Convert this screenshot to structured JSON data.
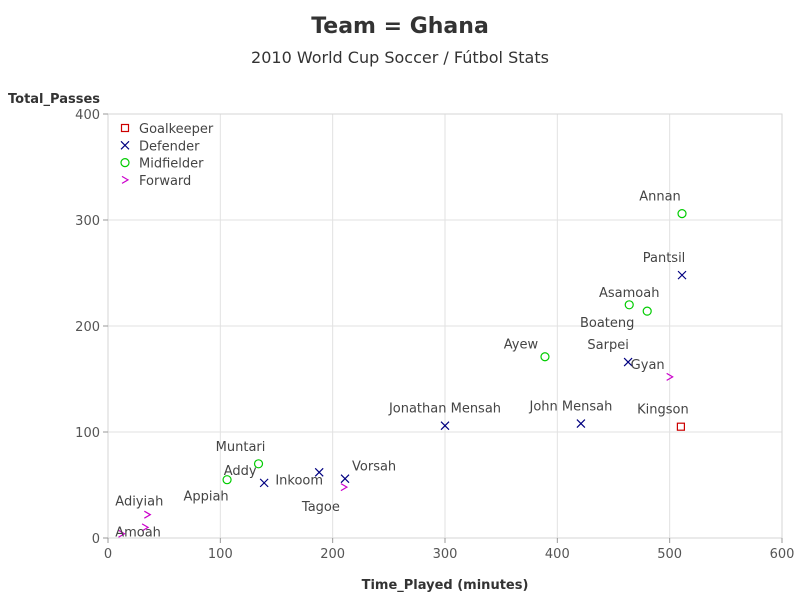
{
  "chart_data": {
    "type": "scatter",
    "title": "Team = Ghana",
    "subtitle": "2010 World Cup Soccer / Fútbol Stats",
    "xlabel": "Time_Played (minutes)",
    "ylabel": "Total_Passes",
    "xlim": [
      0,
      600
    ],
    "ylim": [
      0,
      400
    ],
    "xticks": [
      0,
      100,
      200,
      300,
      400,
      500,
      600
    ],
    "yticks": [
      0,
      100,
      200,
      300,
      400
    ],
    "grid": true,
    "legend_position": "top-left",
    "series": [
      {
        "name": "Goalkeeper",
        "marker": "square",
        "color": "#cc0000",
        "points": [
          {
            "label": "Kingson",
            "x": 510,
            "y": 105
          }
        ]
      },
      {
        "name": "Defender",
        "marker": "x",
        "color": "#000080",
        "points": [
          {
            "label": "Pantsil",
            "x": 511,
            "y": 248
          },
          {
            "label": "Sarpei",
            "x": 463,
            "y": 166
          },
          {
            "label": "John Mensah",
            "x": 421,
            "y": 108
          },
          {
            "label": "Jonathan Mensah",
            "x": 300,
            "y": 106
          },
          {
            "label": "Vorsah",
            "x": 211,
            "y": 56
          },
          {
            "label": "Inkoom",
            "x": 188,
            "y": 62
          },
          {
            "label": "Addy",
            "x": 139,
            "y": 52
          }
        ]
      },
      {
        "name": "Midfielder",
        "marker": "circle",
        "color": "#00cc00",
        "points": [
          {
            "label": "Annan",
            "x": 511,
            "y": 306
          },
          {
            "label": "Asamoah",
            "x": 464,
            "y": 220
          },
          {
            "label": "Boateng",
            "x": 480,
            "y": 214
          },
          {
            "label": "Ayew",
            "x": 389,
            "y": 171
          },
          {
            "label": "Muntari",
            "x": 134,
            "y": 70
          },
          {
            "label": "Appiah",
            "x": 106,
            "y": 55
          }
        ]
      },
      {
        "name": "Forward",
        "marker": "gt",
        "color": "#cc00cc",
        "points": [
          {
            "label": "Gyan",
            "x": 500,
            "y": 152
          },
          {
            "label": "Tagoe",
            "x": 210,
            "y": 48
          },
          {
            "label": "Adiyiah",
            "x": 35,
            "y": 22
          },
          {
            "label": "Amoah",
            "x": 33,
            "y": 10
          },
          {
            "label": "",
            "x": 12,
            "y": 4
          }
        ]
      }
    ]
  }
}
